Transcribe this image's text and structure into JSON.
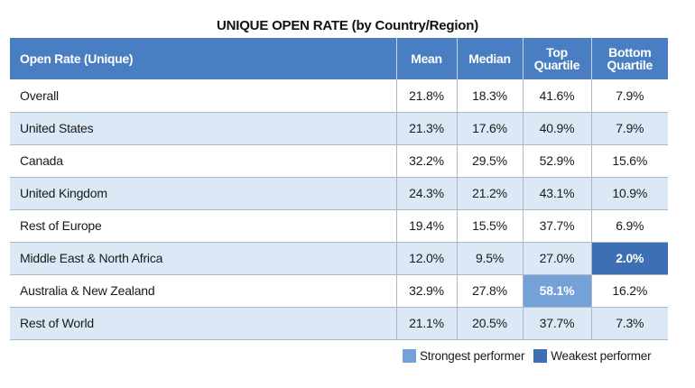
{
  "chart_data": {
    "type": "table",
    "title": "UNIQUE OPEN RATE (by Country/Region)",
    "columns": [
      {
        "key": "label",
        "label": "Open Rate (Unique)",
        "lines": [
          "Open Rate (Unique)"
        ]
      },
      {
        "key": "mean",
        "label": "Mean",
        "lines": [
          "Mean"
        ]
      },
      {
        "key": "median",
        "label": "Median",
        "lines": [
          "Median"
        ]
      },
      {
        "key": "top_quartile",
        "label": "Top Quartile",
        "lines": [
          "Top",
          "Quartile"
        ]
      },
      {
        "key": "bottom_quartile",
        "label": "Bottom Quartile",
        "lines": [
          "Bottom",
          "Quartile"
        ]
      }
    ],
    "rows": [
      {
        "label": "Overall",
        "mean": "21.8%",
        "median": "18.3%",
        "top_quartile": "41.6%",
        "bottom_quartile": "7.9%"
      },
      {
        "label": "United States",
        "mean": "21.3%",
        "median": "17.6%",
        "top_quartile": "40.9%",
        "bottom_quartile": "7.9%"
      },
      {
        "label": "Canada",
        "mean": "32.2%",
        "median": "29.5%",
        "top_quartile": "52.9%",
        "bottom_quartile": "15.6%"
      },
      {
        "label": "United Kingdom",
        "mean": "24.3%",
        "median": "21.2%",
        "top_quartile": "43.1%",
        "bottom_quartile": "10.9%"
      },
      {
        "label": "Rest of Europe",
        "mean": "19.4%",
        "median": "15.5%",
        "top_quartile": "37.7%",
        "bottom_quartile": "6.9%"
      },
      {
        "label": "Middle East & North Africa",
        "mean": "12.0%",
        "median": "9.5%",
        "top_quartile": "27.0%",
        "bottom_quartile": "2.0%",
        "highlight": {
          "bottom_quartile": "weakest"
        }
      },
      {
        "label": "Australia & New Zealand",
        "mean": "32.9%",
        "median": "27.8%",
        "top_quartile": "58.1%",
        "bottom_quartile": "16.2%",
        "highlight": {
          "top_quartile": "strongest"
        }
      },
      {
        "label": "Rest of World",
        "mean": "21.1%",
        "median": "20.5%",
        "top_quartile": "37.7%",
        "bottom_quartile": "7.3%"
      }
    ],
    "legend": [
      {
        "key": "strongest",
        "label": "Strongest performer",
        "color": "#74a2d8"
      },
      {
        "key": "weakest",
        "label": "Weakest performer",
        "color": "#3c6fb4"
      }
    ],
    "colors": {
      "header": "#4a7ec2",
      "alt_row": "#dbe9f6",
      "strongest": "#74a2d8",
      "weakest": "#3c6fb4"
    }
  }
}
